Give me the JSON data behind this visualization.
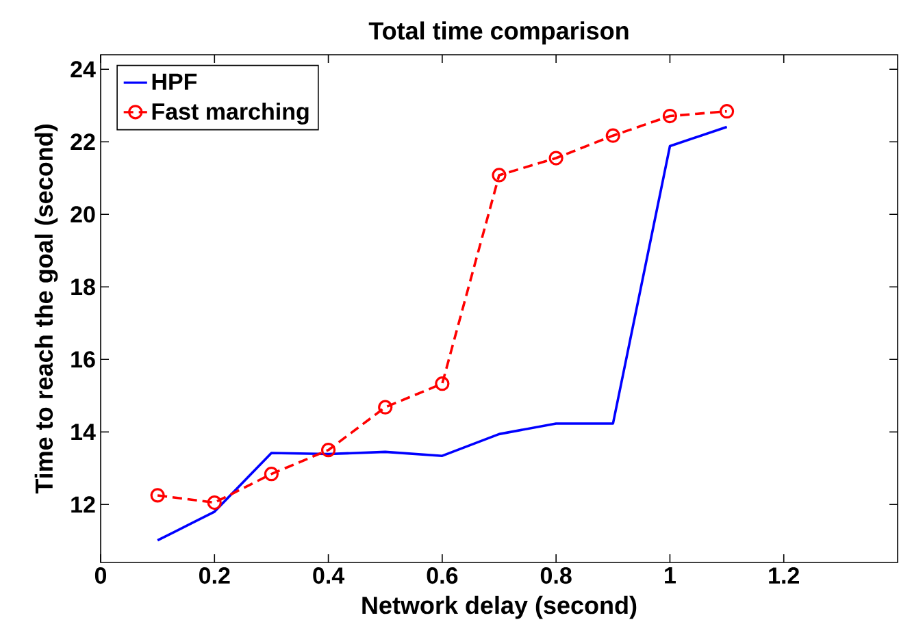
{
  "chart_data": {
    "type": "line",
    "title": "Total time comparison",
    "xlabel": "Network delay (second)",
    "ylabel": "Time to reach the goal (second)",
    "x": [
      0.1,
      0.2,
      0.3,
      0.4,
      0.5,
      0.6,
      0.7,
      0.8,
      0.9,
      1.0,
      1.1
    ],
    "series": [
      {
        "name": "HPF",
        "color": "#0000ff",
        "marker": "none",
        "line_style": "solid",
        "values": [
          11.01,
          11.8,
          13.42,
          13.39,
          13.45,
          13.34,
          13.94,
          14.23,
          14.23,
          21.88,
          22.41
        ]
      },
      {
        "name": "Fast marching",
        "color": "#ff0000",
        "marker": "circle",
        "line_style": "dashed",
        "values": [
          12.25,
          12.05,
          12.84,
          13.5,
          14.68,
          15.33,
          21.08,
          21.55,
          22.17,
          22.71,
          22.84
        ]
      }
    ],
    "xlim": [
      0,
      1.4
    ],
    "xticks": [
      0,
      0.2,
      0.4,
      0.6,
      0.8,
      1,
      1.2
    ],
    "ylim": [
      10.4,
      24.4
    ],
    "yticks": [
      12,
      14,
      16,
      18,
      20,
      22,
      24
    ],
    "grid": false,
    "legend": "top left"
  }
}
